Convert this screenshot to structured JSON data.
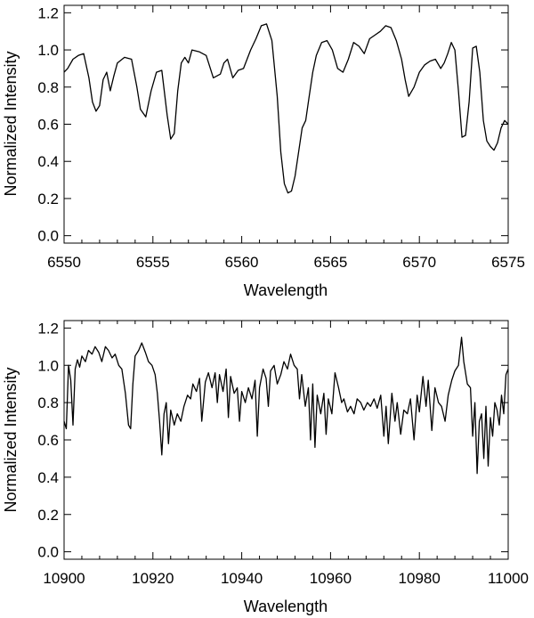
{
  "chart_data": [
    {
      "type": "line",
      "xlabel": "Wavelength",
      "ylabel": "Normalized Intensity",
      "xlim": [
        6550,
        6575
      ],
      "ylim": [
        -0.04,
        1.24
      ],
      "xticks": [
        6550,
        6555,
        6560,
        6565,
        6570,
        6575
      ],
      "yticks": [
        0.0,
        0.2,
        0.4,
        0.6,
        0.8,
        1.0,
        1.2
      ],
      "ytick_labels": [
        "0.0",
        "0.2",
        "0.4",
        "0.6",
        "0.8",
        "1.0",
        "1.2"
      ],
      "grid": false,
      "series": [
        {
          "x": [
            6550.0,
            6550.2,
            6550.5,
            6550.8,
            6551.1,
            6551.4,
            6551.6,
            6551.8,
            6552.0,
            6552.2,
            6552.4,
            6552.6,
            6552.8,
            6553.0,
            6553.4,
            6553.8,
            6554.1,
            6554.3,
            6554.6,
            6554.9,
            6555.2,
            6555.5,
            6555.8,
            6556.0,
            6556.2,
            6556.4,
            6556.6,
            6556.8,
            6557.0,
            6557.2,
            6557.6,
            6558.0,
            6558.4,
            6558.8,
            6559.0,
            6559.2,
            6559.5,
            6559.8,
            6560.1,
            6560.5,
            6560.8,
            6561.1,
            6561.4,
            6561.7,
            6562.0,
            6562.2,
            6562.4,
            6562.6,
            6562.8,
            6563.0,
            6563.2,
            6563.4,
            6563.6,
            6563.8,
            6564.0,
            6564.2,
            6564.5,
            6564.8,
            6565.1,
            6565.4,
            6565.7,
            6566.0,
            6566.3,
            6566.6,
            6566.9,
            6567.2,
            6567.5,
            6567.8,
            6568.1,
            6568.4,
            6568.7,
            6569.0,
            6569.2,
            6569.4,
            6569.7,
            6570.0,
            6570.3,
            6570.6,
            6570.9,
            6571.2,
            6571.4,
            6571.6,
            6571.8,
            6572.0,
            6572.2,
            6572.4,
            6572.6,
            6572.8,
            6573.0,
            6573.2,
            6573.4,
            6573.6,
            6573.8,
            6574.0,
            6574.2,
            6574.4,
            6574.6,
            6574.8,
            6575.0
          ],
          "y": [
            0.88,
            0.9,
            0.95,
            0.97,
            0.98,
            0.85,
            0.72,
            0.67,
            0.7,
            0.84,
            0.88,
            0.78,
            0.86,
            0.93,
            0.96,
            0.95,
            0.8,
            0.68,
            0.64,
            0.78,
            0.88,
            0.89,
            0.65,
            0.52,
            0.55,
            0.78,
            0.93,
            0.96,
            0.93,
            1.0,
            0.99,
            0.97,
            0.85,
            0.87,
            0.93,
            0.95,
            0.85,
            0.89,
            0.9,
            1.0,
            1.06,
            1.13,
            1.14,
            1.05,
            0.75,
            0.45,
            0.28,
            0.23,
            0.24,
            0.32,
            0.45,
            0.58,
            0.62,
            0.75,
            0.88,
            0.97,
            1.04,
            1.05,
            1.0,
            0.9,
            0.88,
            0.95,
            1.04,
            1.02,
            0.98,
            1.06,
            1.08,
            1.1,
            1.13,
            1.12,
            1.05,
            0.95,
            0.84,
            0.75,
            0.8,
            0.88,
            0.92,
            0.94,
            0.95,
            0.9,
            0.93,
            0.98,
            1.04,
            1.0,
            0.78,
            0.53,
            0.54,
            0.72,
            1.01,
            1.02,
            0.88,
            0.62,
            0.51,
            0.48,
            0.46,
            0.5,
            0.58,
            0.62,
            0.6
          ]
        }
      ]
    },
    {
      "type": "line",
      "xlabel": "Wavelength",
      "ylabel": "Normalized Intensity",
      "xlim": [
        10900,
        11000
      ],
      "ylim": [
        -0.04,
        1.24
      ],
      "xticks": [
        10900,
        10920,
        10940,
        10960,
        10980,
        11000
      ],
      "yticks": [
        0.0,
        0.2,
        0.4,
        0.6,
        0.8,
        1.0,
        1.2
      ],
      "ytick_labels": [
        "0.0",
        "0.2",
        "0.4",
        "0.6",
        "0.8",
        "1.0",
        "1.2"
      ],
      "grid": false,
      "series": [
        {
          "x": [
            10900.0,
            10900.5,
            10901.0,
            10901.5,
            10902.0,
            10902.5,
            10903.0,
            10903.5,
            10904.0,
            10904.8,
            10905.5,
            10906.3,
            10907.0,
            10907.8,
            10908.5,
            10909.3,
            10910.0,
            10910.8,
            10911.5,
            10912.3,
            10913.0,
            10913.8,
            10914.5,
            10915.0,
            10915.5,
            10916.0,
            10916.8,
            10917.5,
            10918.3,
            10919.0,
            10919.8,
            10920.5,
            10921.0,
            10921.5,
            10922.0,
            10922.5,
            10923.0,
            10923.5,
            10924.0,
            10924.8,
            10925.5,
            10926.3,
            10927.0,
            10927.8,
            10928.5,
            10929.0,
            10929.8,
            10930.5,
            10931.0,
            10931.8,
            10932.5,
            10933.3,
            10934.0,
            10934.5,
            10935.0,
            10935.8,
            10936.5,
            10937.0,
            10937.5,
            10938.3,
            10939.0,
            10939.5,
            10940.0,
            10940.8,
            10941.5,
            10942.3,
            10943.0,
            10943.5,
            10944.0,
            10944.8,
            10945.5,
            10946.0,
            10946.5,
            10947.3,
            10948.0,
            10948.8,
            10949.5,
            10950.3,
            10951.0,
            10951.8,
            10952.5,
            10953.0,
            10953.5,
            10954.3,
            10955.0,
            10955.5,
            10956.0,
            10956.5,
            10957.0,
            10957.8,
            10958.5,
            10959.0,
            10959.5,
            10960.3,
            10961.0,
            10961.8,
            10962.5,
            10963.0,
            10963.8,
            10964.5,
            10965.3,
            10966.0,
            10966.8,
            10967.5,
            10968.3,
            10969.0,
            10969.8,
            10970.5,
            10971.3,
            10972.0,
            10972.5,
            10973.0,
            10973.8,
            10974.5,
            10975.0,
            10975.8,
            10976.5,
            10977.3,
            10978.0,
            10978.8,
            10979.5,
            10980.0,
            10980.8,
            10981.5,
            10982.0,
            10982.8,
            10983.5,
            10984.3,
            10985.0,
            10985.8,
            10986.5,
            10987.3,
            10988.0,
            10988.8,
            10989.5,
            10990.0,
            10990.8,
            10991.5,
            10992.0,
            10992.5,
            10993.0,
            10993.5,
            10994.0,
            10994.5,
            10995.0,
            10995.5,
            10996.0,
            10996.5,
            10997.0,
            10997.5,
            10998.0,
            10998.5,
            10999.0,
            10999.5,
            11000.0
          ],
          "y": [
            0.7,
            0.66,
            1.0,
            0.92,
            0.68,
            0.98,
            1.03,
            0.99,
            1.05,
            1.02,
            1.08,
            1.06,
            1.1,
            1.07,
            1.02,
            1.1,
            1.08,
            1.04,
            1.06,
            1.0,
            0.98,
            0.85,
            0.68,
            0.66,
            0.9,
            1.05,
            1.08,
            1.12,
            1.07,
            1.02,
            1.0,
            0.95,
            0.85,
            0.7,
            0.52,
            0.74,
            0.8,
            0.58,
            0.76,
            0.68,
            0.74,
            0.7,
            0.78,
            0.84,
            0.82,
            0.9,
            0.86,
            0.93,
            0.7,
            0.91,
            0.96,
            0.88,
            0.96,
            0.8,
            0.95,
            0.86,
            0.98,
            0.72,
            0.94,
            0.85,
            0.88,
            0.7,
            0.86,
            0.8,
            0.88,
            0.82,
            0.92,
            0.62,
            0.88,
            0.98,
            0.93,
            0.78,
            0.97,
            1.0,
            0.9,
            0.95,
            1.02,
            0.98,
            1.06,
            1.0,
            0.98,
            0.82,
            0.95,
            0.78,
            0.88,
            0.6,
            0.9,
            0.56,
            0.84,
            0.74,
            0.85,
            0.63,
            0.82,
            0.74,
            0.96,
            0.88,
            0.8,
            0.82,
            0.75,
            0.78,
            0.74,
            0.82,
            0.8,
            0.76,
            0.8,
            0.78,
            0.82,
            0.77,
            0.84,
            0.62,
            0.78,
            0.58,
            0.85,
            0.7,
            0.8,
            0.63,
            0.76,
            0.74,
            0.82,
            0.6,
            0.84,
            0.75,
            0.94,
            0.78,
            0.92,
            0.65,
            0.88,
            0.8,
            0.78,
            0.7,
            0.84,
            0.92,
            0.97,
            1.0,
            1.15,
            1.02,
            0.9,
            0.88,
            0.62,
            0.8,
            0.42,
            0.7,
            0.74,
            0.5,
            0.78,
            0.46,
            0.72,
            0.62,
            0.8,
            0.76,
            0.68,
            0.84,
            0.74,
            0.95,
            0.98
          ]
        }
      ]
    }
  ]
}
